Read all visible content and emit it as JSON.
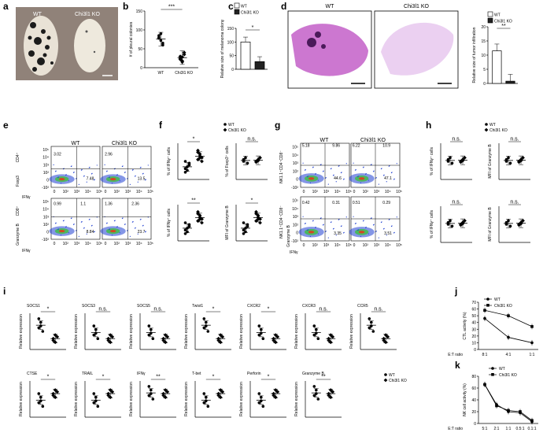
{
  "colors": {
    "ko": "#222222",
    "wt": "#ffffff",
    "he_stain": "#c35fc8",
    "flow_blue": "#1f3fd1",
    "flow_green": "#3fbf3f"
  },
  "panels": {
    "a": "a",
    "b": "b",
    "c": "c",
    "d": "d",
    "e": "e",
    "f": "f",
    "g": "g",
    "h": "h",
    "i": "i",
    "j": "j",
    "k": "k"
  },
  "groups": {
    "wt": "WT",
    "ko": "Chi3l1 KO"
  },
  "sig": {
    "three": "***",
    "two": "**",
    "one": "*",
    "ns": "n.s."
  },
  "panel_b": {
    "ylabel": "# of pleural colonies",
    "ticks": [
      "0",
      "50",
      "100",
      "150"
    ]
  },
  "panel_c": {
    "ylabel": "Relative size of melanoma colony",
    "ticks": [
      "0",
      "50",
      "100",
      "150"
    ]
  },
  "panel_d": {
    "ylabel": "Relative size of tumor infiltration",
    "ticks": [
      "0",
      "5",
      "10",
      "15",
      "20"
    ]
  },
  "panel_e": {
    "ylabels": [
      "CD4⁺",
      "Foxp3",
      "CD8⁺",
      "Granzyme B"
    ],
    "xlabel": "IFNγ",
    "q": [
      [
        "3.02",
        "7.48"
      ],
      [
        "2.96",
        "13.5"
      ],
      [
        "0.99",
        "1.1",
        "8.84"
      ],
      [
        "1.36",
        "2.36",
        "23.7"
      ]
    ]
  },
  "panel_f": {
    "ylabels": [
      "% of IFNγ⁺ cells",
      "% of Foxp3⁺ cells",
      "% of IFNγ⁺ cells",
      "MFI of Granzyme B"
    ]
  },
  "panel_g": {
    "ylabels": [
      "NK1.1⁺CD4⁻CD8⁻",
      "NK1.1⁺CD4⁻CD8⁻",
      "Granzyme B"
    ],
    "xlabel": "IFNγ",
    "q": [
      [
        "5.18",
        "9.86",
        "44.6"
      ],
      [
        "6.22",
        "10.9",
        "47.1"
      ],
      [
        "0.42",
        "0.31",
        "3.35"
      ],
      [
        "0.51",
        "0.29",
        "3.51"
      ]
    ]
  },
  "panel_h": {
    "ylabels": [
      "% of IFNγ⁺ cells",
      "MFI of Granzyme B",
      "% of IFNγ⁺ cells",
      "MFI of Granzyme B"
    ]
  },
  "flow_ticks": [
    "-10²",
    "0",
    "10²",
    "10³",
    "10⁴",
    "10⁵"
  ],
  "panel_i": {
    "ylabel": "Relative expression",
    "genes": [
      "SOCS1",
      "SOCS3",
      "SOCS5",
      "Twist1",
      "CXCR2",
      "CXCR3",
      "CCR5",
      "CTSE",
      "TRAIL",
      "IFNγ",
      "T-bet",
      "Perforin",
      "Granzyme B"
    ],
    "sig": [
      "*",
      "n.s.",
      "n.s.",
      "*",
      "*",
      "n.s.",
      "n.s.",
      "*",
      "*",
      "**",
      "*",
      "*",
      "**"
    ]
  },
  "chart_data": [
    {
      "type": "scatter",
      "panel": "b",
      "ylabel": "# of pleural colonies",
      "categories": [
        "WT",
        "Chi3l1 KO"
      ],
      "ylim": [
        0,
        150
      ],
      "series": [
        {
          "name": "WT",
          "values": [
            80,
            72,
            65,
            85,
            90,
            60,
            78
          ]
        },
        {
          "name": "Chi3l1 KO",
          "values": [
            25,
            18,
            35,
            30,
            15,
            40,
            22,
            28
          ]
        }
      ]
    },
    {
      "type": "bar",
      "panel": "c",
      "ylabel": "Relative size of melanoma colony",
      "categories": [
        "WT",
        "Chi3l1 KO"
      ],
      "values": [
        100,
        28
      ],
      "ylim": [
        0,
        150
      ]
    },
    {
      "type": "bar",
      "panel": "d",
      "ylabel": "Relative size of tumor infiltration",
      "categories": [
        "WT",
        "Chi3l1 KO"
      ],
      "values": [
        11.5,
        0.8
      ],
      "ylim": [
        0,
        20
      ]
    },
    {
      "type": "line",
      "panel": "j",
      "ylabel": "CTL activity (%)",
      "xlabel": "E:T ratio",
      "categories": [
        "8:1",
        "4:1",
        "1:1"
      ],
      "ylim": [
        0,
        70
      ],
      "yticks": [
        0,
        10,
        20,
        30,
        40,
        50,
        60,
        70
      ],
      "series": [
        {
          "name": "WT",
          "values": [
            46,
            18,
            10
          ]
        },
        {
          "name": "Chi3l1 KO",
          "values": [
            58,
            50,
            34
          ]
        }
      ]
    },
    {
      "type": "line",
      "panel": "k",
      "ylabel": "NK cell activity (%)",
      "xlabel": "E:T ratio",
      "categories": [
        "5:1",
        "2:1",
        "1:1",
        "0.5:1",
        "0.1:1"
      ],
      "ylim": [
        0,
        80
      ],
      "yticks": [
        0,
        20,
        40,
        60,
        80
      ],
      "series": [
        {
          "name": "WT",
          "values": [
            66,
            32,
            20,
            18,
            3
          ]
        },
        {
          "name": "Chi3l1 KO",
          "values": [
            66,
            30,
            22,
            20,
            5
          ]
        }
      ]
    }
  ],
  "panel_j": {
    "ylabel": "CTL activity (%)",
    "xlabel": "E:T ratio",
    "yticks": [
      "0",
      "10",
      "20",
      "30",
      "40",
      "50",
      "60",
      "70"
    ],
    "xticks": [
      "8:1",
      "4:1",
      "1:1"
    ]
  },
  "panel_k": {
    "ylabel": "NK cell activity (%)",
    "xlabel": "E:T ratio",
    "yticks": [
      "0",
      "20",
      "40",
      "60",
      "80"
    ],
    "xticks": [
      "5:1",
      "2:1",
      "1:1",
      "0.5:1",
      "0.1:1"
    ]
  }
}
